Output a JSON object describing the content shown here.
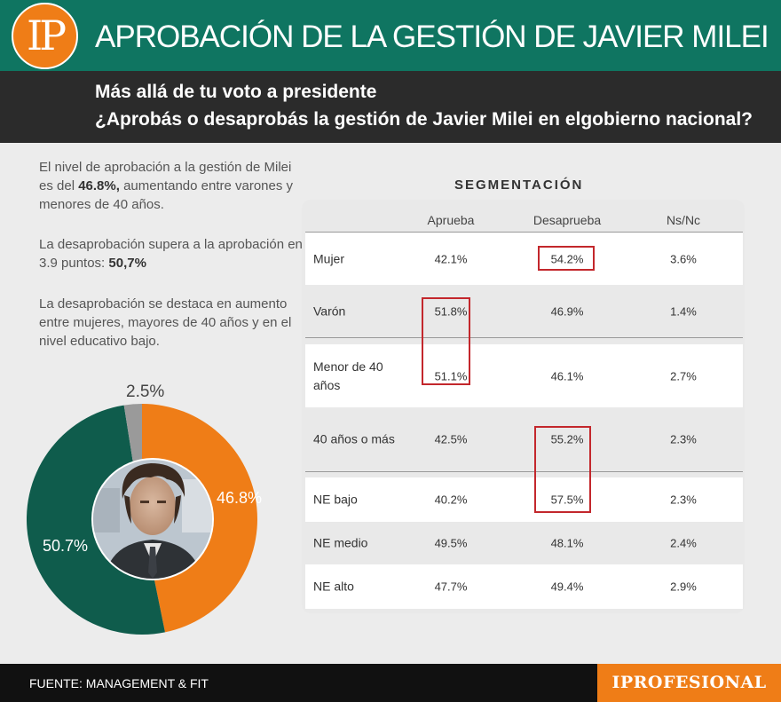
{
  "header": {
    "logo_text": "IP",
    "title": "APROBACIÓN DE LA GESTIÓN DE JAVIER MILEI"
  },
  "subheader": {
    "line1": "Más allá de tu voto a presidente",
    "line2": "¿Aprobás o desaprobás la gestión de Javier Milei en elgobierno nacional?"
  },
  "intro": {
    "p1_a": "El nivel de aprobación a la gestión de Milei es del ",
    "p1_b": "46.8%,",
    "p1_c": " aumentando entre varones y menores de 40 años.",
    "p2_a": "La desaprobación supera a la aprobación en 3.9 puntos: ",
    "p2_b": "50,7%",
    "p3": "La desaprobación se destaca en aumento entre mujeres, mayores de 40 años y en el nivel educativo bajo."
  },
  "chart_data": [
    {
      "type": "pie",
      "style": "donut",
      "categories": [
        "Aprueba",
        "Desaprueba",
        "Ns/Nc"
      ],
      "values": [
        46.8,
        50.7,
        2.5
      ],
      "value_labels": [
        "46.8%",
        "50.7%",
        "2.5%"
      ],
      "colors": [
        "#ef7d17",
        "#0f5c4c",
        "#9a9a9a"
      ],
      "center": "photo of Javier Milei"
    },
    {
      "type": "table",
      "title": "SEGMENTACIÓN",
      "columns": [
        "Aprueba",
        "Desaprueba",
        "Ns/Nc"
      ],
      "rows": [
        {
          "label": "Mujer",
          "values": [
            "42.1%",
            "54.2%",
            "3.6%"
          ]
        },
        {
          "label": "Varón",
          "values": [
            "51.8%",
            "46.9%",
            "1.4%"
          ]
        },
        {
          "label": "Menor de 40 años",
          "values": [
            "51.1%",
            "46.1%",
            "2.7%"
          ]
        },
        {
          "label": "40 años o más",
          "values": [
            "42.5%",
            "55.2%",
            "2.3%"
          ]
        },
        {
          "label": "NE bajo",
          "values": [
            "40.2%",
            "57.5%",
            "2.3%"
          ]
        },
        {
          "label": "NE medio",
          "values": [
            "49.5%",
            "48.1%",
            "2.4%"
          ]
        },
        {
          "label": "NE alto",
          "values": [
            "47.7%",
            "49.4%",
            "2.9%"
          ]
        }
      ],
      "highlighted": [
        "Mujer / Desaprueba",
        "Varón / Aprueba",
        "Menor de 40 años / Aprueba",
        "40 años o más / Desaprueba",
        "NE bajo / Desaprueba"
      ]
    }
  ],
  "footer": {
    "source": "FUENTE: MANAGEMENT & FIT",
    "brand": "IPROFESIONAL"
  },
  "colors": {
    "header_green": "#0f7561",
    "orange": "#ef7d17",
    "dark_green": "#0f5c4c",
    "gray": "#9a9a9a",
    "highlight_red": "#c3272c"
  }
}
